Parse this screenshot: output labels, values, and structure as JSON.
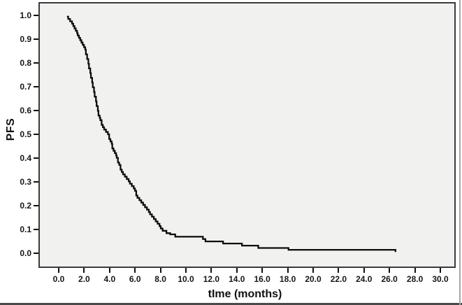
{
  "figure": {
    "background": "#ffffff",
    "plot_background": "#f1f1f0",
    "plot_border_color": "#3a3a3a",
    "curve_color": "#0c0c0c",
    "tick_color": "#111111",
    "text_color": "#161616",
    "frame_bottom_color": "#4a4a4a",
    "frame_right_color": "#a8a8a8"
  },
  "chart_data": {
    "type": "line",
    "subtype": "kaplan-meier-step",
    "title": "",
    "xlabel": "tIme (months)",
    "ylabel": "PFS",
    "xlim": [
      0,
      30
    ],
    "ylim": [
      0.0,
      1.0
    ],
    "grid": false,
    "legend_position": "none",
    "x_ticks": [
      {
        "label": "0.0",
        "value": 0
      },
      {
        "label": "2.0",
        "value": 2
      },
      {
        "label": "4.0",
        "value": 4
      },
      {
        "label": "6.0",
        "value": 6
      },
      {
        "label": "8.0",
        "value": 8
      },
      {
        "label": "10.0",
        "value": 10
      },
      {
        "label": "12.0",
        "value": 12
      },
      {
        "label": "14.0",
        "value": 14
      },
      {
        "label": "16.0",
        "value": 16
      },
      {
        "label": "18.0",
        "value": 18
      },
      {
        "label": "20.0",
        "value": 20
      },
      {
        "label": "22.0",
        "value": 22
      },
      {
        "label": "24.0",
        "value": 24
      },
      {
        "label": "26.0",
        "value": 26
      },
      {
        "label": "28.0",
        "value": 28
      },
      {
        "label": "30.0",
        "value": 30
      }
    ],
    "y_ticks": [
      {
        "label": "0.0",
        "value": 0.0
      },
      {
        "label": "0.1",
        "value": 0.1
      },
      {
        "label": "0.2",
        "value": 0.2
      },
      {
        "label": "0.3",
        "value": 0.3
      },
      {
        "label": "0.4",
        "value": 0.4
      },
      {
        "label": "0.5",
        "value": 0.5
      },
      {
        "label": "0.6",
        "value": 0.6
      },
      {
        "label": "0.7",
        "value": 0.7
      },
      {
        "label": "0.8",
        "value": 0.8
      },
      {
        "label": "0.9",
        "value": 0.9
      },
      {
        "label": "1.0",
        "value": 1.0
      }
    ],
    "series": [
      {
        "name": "PFS",
        "style": "step-after",
        "points": [
          [
            0.5,
            1.0
          ],
          [
            0.6,
            0.99
          ],
          [
            0.75,
            0.98
          ],
          [
            0.9,
            0.97
          ],
          [
            1.0,
            0.96
          ],
          [
            1.1,
            0.95
          ],
          [
            1.2,
            0.94
          ],
          [
            1.3,
            0.93
          ],
          [
            1.35,
            0.92
          ],
          [
            1.45,
            0.91
          ],
          [
            1.55,
            0.9
          ],
          [
            1.65,
            0.89
          ],
          [
            1.75,
            0.88
          ],
          [
            1.85,
            0.87
          ],
          [
            1.95,
            0.86
          ],
          [
            2.0,
            0.84
          ],
          [
            2.1,
            0.82
          ],
          [
            2.2,
            0.8
          ],
          [
            2.25,
            0.78
          ],
          [
            2.35,
            0.76
          ],
          [
            2.4,
            0.74
          ],
          [
            2.5,
            0.72
          ],
          [
            2.55,
            0.7
          ],
          [
            2.65,
            0.68
          ],
          [
            2.7,
            0.66
          ],
          [
            2.8,
            0.64
          ],
          [
            2.85,
            0.62
          ],
          [
            2.95,
            0.6
          ],
          [
            3.0,
            0.58
          ],
          [
            3.1,
            0.57
          ],
          [
            3.15,
            0.56
          ],
          [
            3.25,
            0.54
          ],
          [
            3.35,
            0.53
          ],
          [
            3.45,
            0.52
          ],
          [
            3.6,
            0.51
          ],
          [
            3.75,
            0.5
          ],
          [
            3.85,
            0.48
          ],
          [
            3.95,
            0.47
          ],
          [
            4.05,
            0.46
          ],
          [
            4.1,
            0.44
          ],
          [
            4.2,
            0.43
          ],
          [
            4.3,
            0.42
          ],
          [
            4.4,
            0.41
          ],
          [
            4.45,
            0.4
          ],
          [
            4.55,
            0.38
          ],
          [
            4.65,
            0.37
          ],
          [
            4.75,
            0.35
          ],
          [
            4.85,
            0.34
          ],
          [
            4.95,
            0.33
          ],
          [
            5.1,
            0.32
          ],
          [
            5.25,
            0.31
          ],
          [
            5.4,
            0.3
          ],
          [
            5.5,
            0.29
          ],
          [
            5.65,
            0.28
          ],
          [
            5.8,
            0.27
          ],
          [
            5.9,
            0.26
          ],
          [
            6.0,
            0.24
          ],
          [
            6.1,
            0.23
          ],
          [
            6.25,
            0.22
          ],
          [
            6.4,
            0.21
          ],
          [
            6.55,
            0.2
          ],
          [
            6.7,
            0.19
          ],
          [
            6.85,
            0.18
          ],
          [
            7.0,
            0.17
          ],
          [
            7.1,
            0.16
          ],
          [
            7.25,
            0.15
          ],
          [
            7.4,
            0.14
          ],
          [
            7.55,
            0.13
          ],
          [
            7.7,
            0.12
          ],
          [
            7.85,
            0.11
          ],
          [
            7.95,
            0.1
          ],
          [
            8.1,
            0.09
          ],
          [
            8.4,
            0.08
          ],
          [
            8.7,
            0.075
          ],
          [
            9.1,
            0.065
          ],
          [
            11.3,
            0.055
          ],
          [
            11.5,
            0.045
          ],
          [
            12.9,
            0.036
          ],
          [
            14.4,
            0.027
          ],
          [
            15.7,
            0.017
          ],
          [
            18.1,
            0.009
          ],
          [
            26.6,
            0.0
          ]
        ]
      }
    ]
  }
}
